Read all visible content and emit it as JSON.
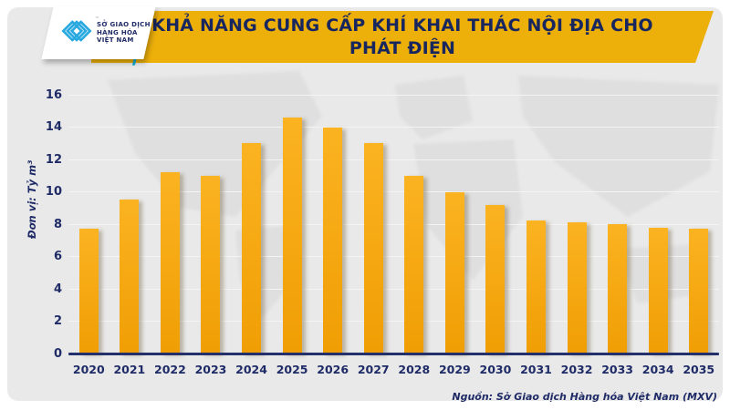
{
  "logo": {
    "line1": "SỞ GIAO DỊCH",
    "line2": "HÀNG HÓA",
    "line3": "VIỆT NAM",
    "tm": "™",
    "mark_color": "#29a9e0"
  },
  "title": {
    "line1": "KHẢ NĂNG CUNG CẤP KHÍ KHAI THÁC NỘI ĐỊA CHO",
    "line2": "PHÁT ĐIỆN"
  },
  "source": "Nguồn: Sở Giao dịch Hàng hóa Việt Nam (MXV)",
  "colors": {
    "banner": "#edaf0a",
    "navy_text": "#1f2b66",
    "bar_top": "#fbb321",
    "bar_bottom": "#f09e04",
    "panel_bg": "#e9e9e9",
    "axis": "#23306b",
    "logo_cyan": "#29a9e0"
  },
  "chart_data": {
    "type": "bar",
    "title": "KHẢ NĂNG CUNG CẤP KHÍ KHAI THÁC NỘI ĐỊA CHO PHÁT ĐIỆN",
    "categories": [
      "2020",
      "2021",
      "2022",
      "2023",
      "2024",
      "2025",
      "2026",
      "2027",
      "2028",
      "2029",
      "2030",
      "2031",
      "2032",
      "2033",
      "2034",
      "2035"
    ],
    "values": [
      7.7,
      9.5,
      11.2,
      11.0,
      13.0,
      14.6,
      14.0,
      13.0,
      11.0,
      10.0,
      9.2,
      8.2,
      8.1,
      8.0,
      7.8,
      7.7
    ],
    "xlabel": "",
    "ylabel": "Đơn vị: Tỷ m³",
    "ylim": [
      0,
      16
    ],
    "yticks": [
      0,
      2,
      4,
      6,
      8,
      10,
      12,
      14,
      16
    ],
    "grid": true,
    "legend": false
  }
}
